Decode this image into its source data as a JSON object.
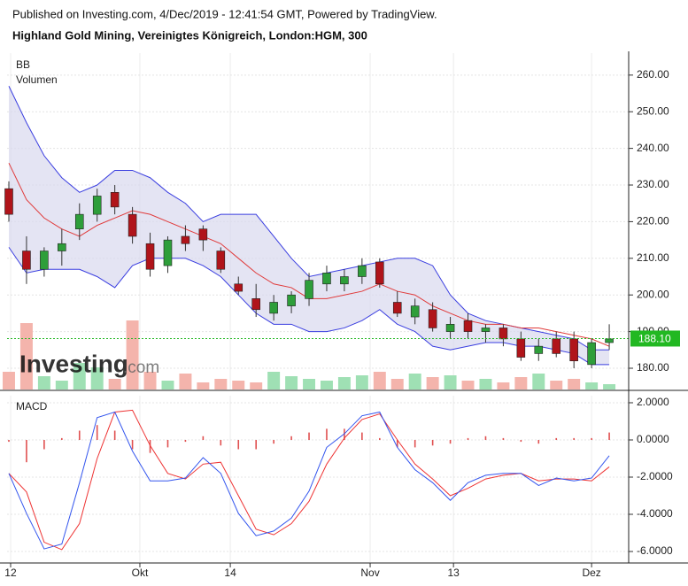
{
  "header": {
    "published": "Published on Investing.com, 4/Dec/2019 - 12:41:54 GMT, Powered by TradingView.",
    "instrument": "Highland Gold Mining, Vereinigtes Königreich, London:HGM, 300"
  },
  "watermark": {
    "main": "Investing",
    "suffix": ".com"
  },
  "chart_data": [
    {
      "type": "candlestick",
      "labels": [
        "BB",
        "Volumen"
      ],
      "x": [
        0,
        1,
        2,
        3,
        4,
        5,
        6,
        7,
        8,
        9,
        10,
        11,
        12,
        13,
        14,
        15,
        16,
        17,
        18,
        19,
        20,
        21,
        22,
        23,
        24,
        25,
        26,
        27,
        28,
        29,
        30,
        31,
        32,
        33,
        34
      ],
      "open": [
        229,
        212,
        207,
        212,
        218,
        222,
        228,
        222,
        214,
        208,
        216,
        218,
        212,
        203,
        199,
        195,
        197,
        199,
        203,
        203,
        205,
        209,
        198,
        194,
        196,
        190,
        193,
        190,
        191,
        188,
        184,
        188,
        188,
        181,
        187
      ],
      "high": [
        231,
        216,
        213,
        218,
        225,
        229,
        230,
        224,
        217,
        216,
        219,
        219,
        213,
        205,
        203,
        200,
        201,
        206,
        208,
        207,
        210,
        210,
        201,
        199,
        198,
        194,
        195,
        192,
        192,
        190,
        188,
        190,
        190,
        188,
        192
      ],
      "low": [
        220,
        203,
        205,
        208,
        215,
        220,
        222,
        214,
        205,
        206,
        212,
        212,
        206,
        200,
        194,
        193,
        195,
        197,
        201,
        201,
        203,
        202,
        194,
        192,
        190,
        188,
        188,
        187,
        186,
        182,
        182,
        183,
        180,
        180,
        185
      ],
      "close": [
        222,
        207,
        212,
        214,
        222,
        227,
        224,
        216,
        207,
        215,
        214,
        215,
        207,
        201,
        196,
        198,
        200,
        204,
        206,
        205,
        208,
        203,
        195,
        197,
        191,
        192,
        190,
        191,
        188,
        183,
        186,
        184,
        182,
        187,
        188
      ],
      "up_color": "#2e9e3a",
      "down_color": "#b0141a",
      "bb_upper": [
        257,
        247,
        238,
        232,
        228,
        230,
        234,
        234,
        232,
        228,
        225,
        220,
        222,
        222,
        222,
        216,
        210,
        205,
        206,
        207,
        208,
        209,
        210,
        210,
        208,
        200,
        195,
        193,
        192,
        191,
        190,
        189,
        188,
        185,
        185
      ],
      "bb_middle": [
        236,
        226,
        221,
        218,
        216,
        219,
        221,
        223,
        222,
        220,
        218,
        216,
        214,
        210,
        206,
        203,
        202,
        199,
        199,
        200,
        201,
        203,
        201,
        200,
        197,
        195,
        193,
        192,
        192,
        191,
        191,
        190,
        189,
        188,
        186
      ],
      "bb_lower": [
        213,
        206,
        207,
        207,
        207,
        205,
        202,
        208,
        210,
        210,
        210,
        208,
        205,
        200,
        195,
        192,
        192,
        190,
        190,
        191,
        193,
        196,
        192,
        190,
        186,
        185,
        186,
        187,
        187,
        186,
        186,
        185,
        184,
        181,
        181
      ],
      "bb_color": "#3a3ee0",
      "bb_middle_color": "#e03a3a",
      "bb_fill": "#d8d8ee",
      "volume": [
        20,
        75,
        15,
        10,
        30,
        25,
        12,
        78,
        20,
        10,
        18,
        8,
        12,
        10,
        8,
        20,
        15,
        12,
        10,
        14,
        16,
        20,
        12,
        18,
        14,
        16,
        10,
        12,
        8,
        14,
        18,
        10,
        12,
        8,
        6
      ],
      "volume_up_color": "#9fe0b4",
      "volume_down_color": "#f4b4ac",
      "last_price": {
        "value": 188.1,
        "label": "188.10"
      },
      "last_price_color": "#22b822",
      "xlim": [
        -0.1,
        35.1
      ],
      "ylim": [
        174.2,
        266.0
      ],
      "yticks": [
        {
          "value": 180,
          "label": "180.00"
        },
        {
          "value": 190,
          "label": "190.00"
        },
        {
          "value": 200,
          "label": "200.00"
        },
        {
          "value": 210,
          "label": "210.00"
        },
        {
          "value": 220,
          "label": "220.00"
        },
        {
          "value": 230,
          "label": "230.00"
        },
        {
          "value": 240,
          "label": "240.00"
        },
        {
          "value": 250,
          "label": "250.00"
        },
        {
          "value": 260,
          "label": "260.00"
        }
      ],
      "grid": true
    },
    {
      "type": "macd",
      "title": "MACD",
      "x": [
        0,
        1,
        2,
        3,
        4,
        5,
        6,
        7,
        8,
        9,
        10,
        11,
        12,
        13,
        14,
        15,
        16,
        17,
        18,
        19,
        20,
        21,
        22,
        23,
        24,
        25,
        26,
        27,
        28,
        29,
        30,
        31,
        32,
        33,
        34
      ],
      "macd": [
        -1.8,
        -3.95,
        -5.86,
        -5.6,
        -2.3,
        1.2,
        1.5,
        -0.6,
        -2.2,
        -2.2,
        -2.05,
        -0.95,
        -1.8,
        -3.95,
        -5.15,
        -4.9,
        -4.2,
        -2.75,
        -0.4,
        0.33,
        1.3,
        1.5,
        -0.4,
        -1.6,
        -2.3,
        -3.25,
        -2.3,
        -1.9,
        -1.8,
        -1.8,
        -2.45,
        -2.05,
        -2.2,
        -2.05,
        -0.85
      ],
      "signal": [
        -1.8,
        -2.8,
        -5.5,
        -5.9,
        -4.5,
        -1,
        1.5,
        1.6,
        -0.3,
        -1.8,
        -2.1,
        -1.3,
        -1.2,
        -3,
        -4.8,
        -5.1,
        -4.5,
        -3.3,
        -1.3,
        0.1,
        1.1,
        1.4,
        0,
        -1.3,
        -2.1,
        -3,
        -2.6,
        -2.1,
        -1.9,
        -1.8,
        -2.2,
        -2.1,
        -2.1,
        -2.2,
        -1.45
      ],
      "histogram": [
        -0.1,
        -1.2,
        -0.5,
        0.1,
        0.5,
        0.8,
        0.5,
        -0.5,
        -0.7,
        -0.4,
        -0.1,
        0.2,
        -0.3,
        -0.5,
        -0.5,
        -0.2,
        0.2,
        0.4,
        0.6,
        0.6,
        0.4,
        0.1,
        -0.4,
        -0.4,
        -0.3,
        -0.2,
        0.1,
        0.2,
        0.1,
        -0.1,
        -0.2,
        0.1,
        0.1,
        0.1,
        0.4
      ],
      "macd_color": "#3355ee",
      "signal_color": "#ee3333",
      "histogram_color": "#e05050",
      "xlim": [
        -0.1,
        35.1
      ],
      "xticks": [
        {
          "value": 0.1,
          "label": "12"
        },
        {
          "value": 7.42,
          "label": "Okt"
        },
        {
          "value": 12.54,
          "label": "14"
        },
        {
          "value": 20.46,
          "label": "Nov"
        },
        {
          "value": 25.18,
          "label": "13"
        },
        {
          "value": 33,
          "label": "Dez"
        }
      ],
      "ylim": [
        -6.57,
        2.38
      ],
      "yticks": [
        {
          "value": 2,
          "label": "2.0000"
        },
        {
          "value": 0,
          "label": "0.0000"
        },
        {
          "value": -2,
          "label": "-2.0000"
        },
        {
          "value": -4,
          "label": "-4.0000"
        },
        {
          "value": -6,
          "label": "-6.0000"
        }
      ],
      "grid": true
    }
  ]
}
